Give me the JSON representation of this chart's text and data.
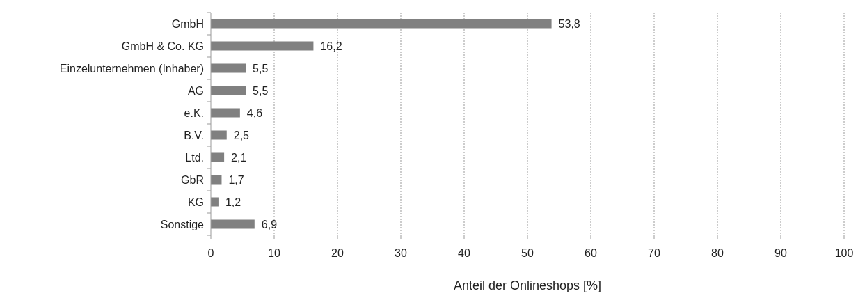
{
  "chart_data": {
    "type": "bar",
    "orientation": "horizontal",
    "categories": [
      "GmbH",
      "GmbH & Co. KG",
      "Einzelunternehmen (Inhaber)",
      "AG",
      "e.K.",
      "B.V.",
      "Ltd.",
      "GbR",
      "KG",
      "Sonstige"
    ],
    "values": [
      53.8,
      16.2,
      5.5,
      5.5,
      4.6,
      2.5,
      2.1,
      1.7,
      1.2,
      6.9
    ],
    "value_labels": [
      "53,8",
      "16,2",
      "5,5",
      "5,5",
      "4,6",
      "2,5",
      "2,1",
      "1,7",
      "1,2",
      "6,9"
    ],
    "color": "#808080",
    "xlim": [
      0,
      100
    ],
    "xticks": [
      0,
      10,
      20,
      30,
      40,
      50,
      60,
      70,
      80,
      90,
      100
    ],
    "grid": "x",
    "xlabel": "Anteil der Onlineshops [%]"
  }
}
